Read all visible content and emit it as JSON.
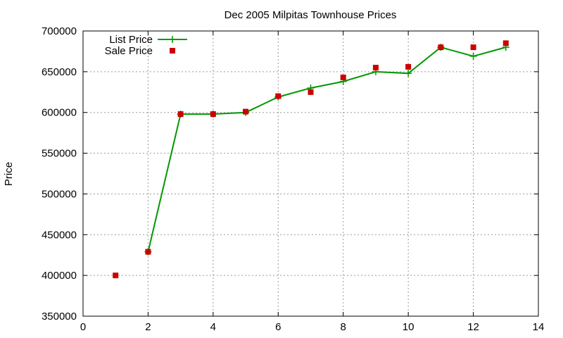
{
  "chart_data": {
    "type": "line",
    "title": "Dec 2005 Milpitas Townhouse Prices",
    "xlabel": "",
    "ylabel": "Price",
    "xlim": [
      0,
      14
    ],
    "ylim": [
      350000,
      700000
    ],
    "x_ticks": [
      0,
      2,
      4,
      6,
      8,
      10,
      12,
      14
    ],
    "y_ticks": [
      350000,
      400000,
      450000,
      500000,
      550000,
      600000,
      650000,
      700000
    ],
    "grid": true,
    "legend_position": "top-left",
    "series": [
      {
        "name": "List Price",
        "style": "lines+plus",
        "color": "#009900",
        "x": [
          2,
          3,
          4,
          5,
          6,
          7,
          8,
          9,
          10,
          11,
          12,
          13
        ],
        "y": [
          429000,
          598000,
          598000,
          600000,
          619000,
          630000,
          638000,
          650000,
          648000,
          680000,
          669000,
          680000
        ]
      },
      {
        "name": "Sale Price",
        "style": "squares",
        "color": "#cc0000",
        "x": [
          1,
          2,
          3,
          4,
          5,
          6,
          7,
          8,
          9,
          10,
          11,
          12,
          13
        ],
        "y": [
          400000,
          429000,
          598000,
          598000,
          601000,
          620000,
          625000,
          643000,
          655000,
          656000,
          680000,
          680000,
          685000
        ]
      }
    ]
  }
}
